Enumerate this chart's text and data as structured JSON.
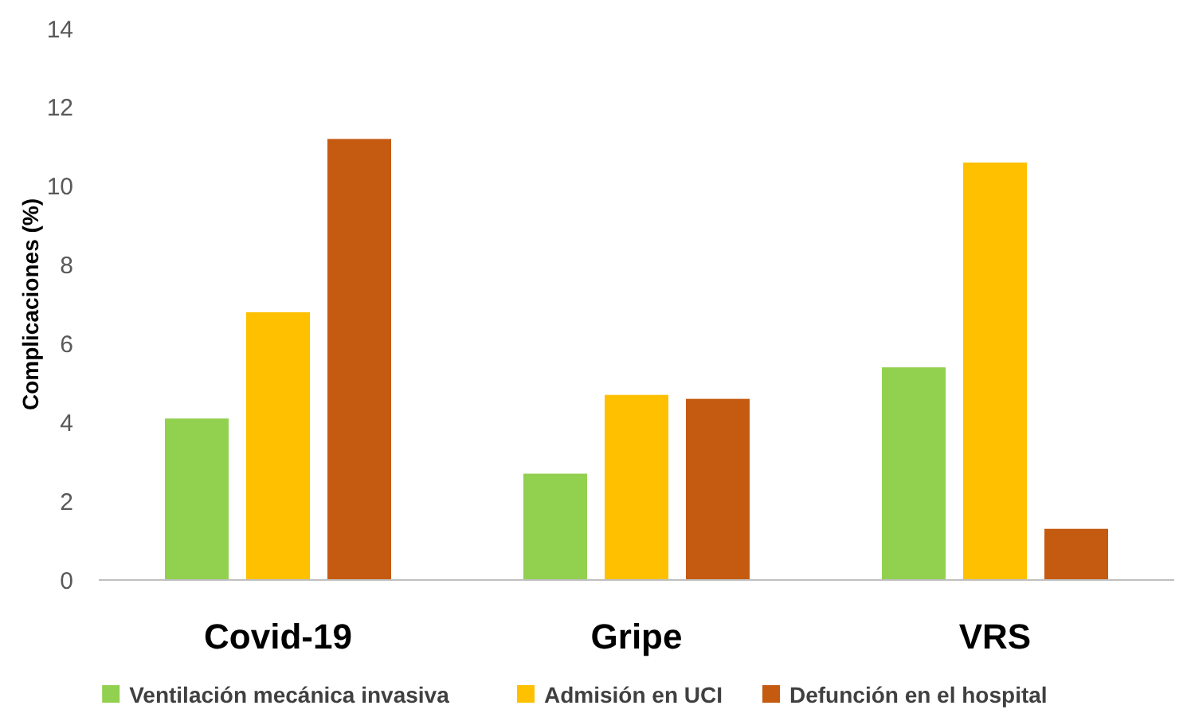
{
  "chart_data": {
    "type": "bar",
    "ylabel": "Complicaciones (%)",
    "categories": [
      "Covid-19",
      "Gripe",
      "VRS"
    ],
    "series": [
      {
        "name": "Ventilación mecánica invasiva",
        "color": "#92d050",
        "values": [
          4.1,
          2.7,
          5.4
        ]
      },
      {
        "name": "Admisión en UCI",
        "color": "#ffc000",
        "values": [
          6.8,
          4.7,
          10.6
        ]
      },
      {
        "name": "Defunción en el hospital",
        "color": "#c55a11",
        "values": [
          11.2,
          4.6,
          1.3
        ]
      }
    ],
    "ylim": [
      0,
      14
    ],
    "yticks": [
      0,
      2,
      4,
      6,
      8,
      10,
      12,
      14
    ],
    "grid": false,
    "legend": "bottom"
  }
}
